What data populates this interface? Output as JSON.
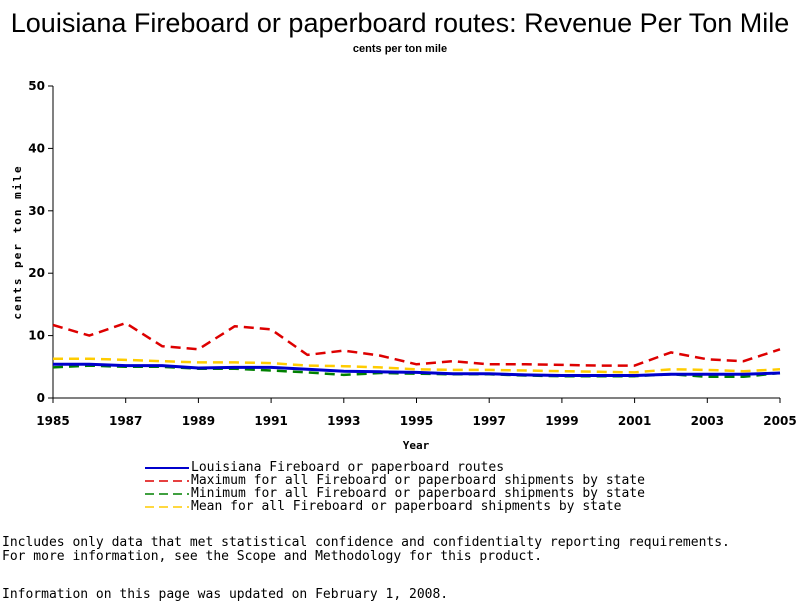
{
  "chart_data": {
    "type": "line",
    "title": "Louisiana Fireboard or paperboard routes: Revenue Per Ton Mile",
    "subtitle": "cents per ton mile",
    "xlabel": "Year",
    "ylabel": "cents per ton mile",
    "xlim": [
      1985,
      2005
    ],
    "ylim": [
      0,
      50
    ],
    "x_ticks": [
      "1985",
      "1987",
      "1989",
      "1991",
      "1993",
      "1995",
      "1997",
      "1999",
      "2001",
      "2003",
      "2005"
    ],
    "y_ticks": [
      "0",
      "10",
      "20",
      "30",
      "40",
      "50"
    ],
    "grid": false,
    "legend_position": "bottom",
    "x": [
      1985,
      1986,
      1987,
      1988,
      1989,
      1990,
      1991,
      1992,
      1993,
      1994,
      1995,
      1996,
      1997,
      1998,
      1999,
      2000,
      2001,
      2002,
      2003,
      2004,
      2005
    ],
    "series": [
      {
        "name": "Louisiana Fireboard or paperboard routes",
        "color": "#0000cc",
        "dash": "solid",
        "values": [
          5.4,
          5.4,
          5.2,
          5.2,
          4.8,
          4.9,
          4.9,
          4.6,
          4.3,
          4.2,
          4.1,
          3.9,
          3.9,
          3.7,
          3.6,
          3.6,
          3.6,
          3.8,
          3.8,
          3.8,
          4.0
        ]
      },
      {
        "name": "Maximum for all Fireboard or paperboard shipments by state",
        "color": "#dd0000",
        "dash": "dashed",
        "values": [
          11.7,
          10.0,
          12.0,
          8.3,
          7.8,
          11.5,
          11.0,
          6.9,
          7.6,
          6.8,
          5.4,
          5.9,
          5.4,
          5.4,
          5.3,
          5.2,
          5.2,
          7.3,
          6.2,
          5.9,
          7.8
        ]
      },
      {
        "name": "Minimum for all Fireboard or paperboard shipments by state",
        "color": "#008000",
        "dash": "dashed",
        "values": [
          4.9,
          5.2,
          5.0,
          5.0,
          4.7,
          4.7,
          4.4,
          4.1,
          3.7,
          4.0,
          3.9,
          3.8,
          3.8,
          3.6,
          3.5,
          3.5,
          3.5,
          3.8,
          3.4,
          3.4,
          4.0
        ]
      },
      {
        "name": "Mean for all Fireboard or paperboard shipments by state",
        "color": "#ffcc00",
        "dash": "dashed",
        "values": [
          6.3,
          6.3,
          6.1,
          5.9,
          5.7,
          5.7,
          5.6,
          5.2,
          5.1,
          4.9,
          4.6,
          4.5,
          4.5,
          4.4,
          4.3,
          4.2,
          4.1,
          4.6,
          4.5,
          4.3,
          4.6
        ]
      }
    ]
  },
  "notes": {
    "line1": "Includes only data that met statistical confidence and confidentialty reporting requirements.",
    "line2": "For more information, see the Scope and Methodology for this product.",
    "updated": "Information on this page was updated on February 1, 2008."
  }
}
